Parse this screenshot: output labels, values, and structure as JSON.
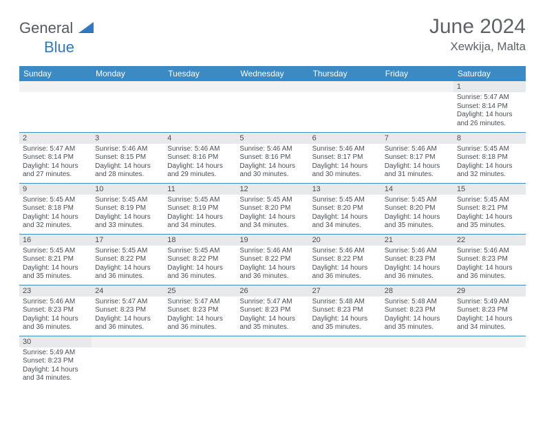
{
  "logo": {
    "generalText": "General",
    "blueText": "Blue"
  },
  "header": {
    "title": "June 2024",
    "location": "Xewkija, Malta"
  },
  "colors": {
    "headerBar": "#3b8ac4",
    "headerText": "#ffffff",
    "dayNumBg": "#e8e9ea",
    "blankBg": "#f2f2f2",
    "bodyText": "#4a4e54",
    "titleText": "#5d6168",
    "logoGray": "#555a60",
    "logoBlue": "#2f78c2",
    "pageBg": "#ffffff"
  },
  "typography": {
    "title_fontsize": 30,
    "location_fontsize": 17,
    "dayhead_fontsize": 12,
    "daynum_fontsize": 11,
    "body_fontsize": 10
  },
  "dayNames": [
    "Sunday",
    "Monday",
    "Tuesday",
    "Wednesday",
    "Thursday",
    "Friday",
    "Saturday"
  ],
  "weeks": [
    [
      null,
      null,
      null,
      null,
      null,
      null,
      {
        "n": "1",
        "sr": "Sunrise: 5:47 AM",
        "ss": "Sunset: 8:14 PM",
        "d1": "Daylight: 14 hours",
        "d2": "and 26 minutes."
      }
    ],
    [
      {
        "n": "2",
        "sr": "Sunrise: 5:47 AM",
        "ss": "Sunset: 8:14 PM",
        "d1": "Daylight: 14 hours",
        "d2": "and 27 minutes."
      },
      {
        "n": "3",
        "sr": "Sunrise: 5:46 AM",
        "ss": "Sunset: 8:15 PM",
        "d1": "Daylight: 14 hours",
        "d2": "and 28 minutes."
      },
      {
        "n": "4",
        "sr": "Sunrise: 5:46 AM",
        "ss": "Sunset: 8:16 PM",
        "d1": "Daylight: 14 hours",
        "d2": "and 29 minutes."
      },
      {
        "n": "5",
        "sr": "Sunrise: 5:46 AM",
        "ss": "Sunset: 8:16 PM",
        "d1": "Daylight: 14 hours",
        "d2": "and 30 minutes."
      },
      {
        "n": "6",
        "sr": "Sunrise: 5:46 AM",
        "ss": "Sunset: 8:17 PM",
        "d1": "Daylight: 14 hours",
        "d2": "and 30 minutes."
      },
      {
        "n": "7",
        "sr": "Sunrise: 5:46 AM",
        "ss": "Sunset: 8:17 PM",
        "d1": "Daylight: 14 hours",
        "d2": "and 31 minutes."
      },
      {
        "n": "8",
        "sr": "Sunrise: 5:45 AM",
        "ss": "Sunset: 8:18 PM",
        "d1": "Daylight: 14 hours",
        "d2": "and 32 minutes."
      }
    ],
    [
      {
        "n": "9",
        "sr": "Sunrise: 5:45 AM",
        "ss": "Sunset: 8:18 PM",
        "d1": "Daylight: 14 hours",
        "d2": "and 32 minutes."
      },
      {
        "n": "10",
        "sr": "Sunrise: 5:45 AM",
        "ss": "Sunset: 8:19 PM",
        "d1": "Daylight: 14 hours",
        "d2": "and 33 minutes."
      },
      {
        "n": "11",
        "sr": "Sunrise: 5:45 AM",
        "ss": "Sunset: 8:19 PM",
        "d1": "Daylight: 14 hours",
        "d2": "and 34 minutes."
      },
      {
        "n": "12",
        "sr": "Sunrise: 5:45 AM",
        "ss": "Sunset: 8:20 PM",
        "d1": "Daylight: 14 hours",
        "d2": "and 34 minutes."
      },
      {
        "n": "13",
        "sr": "Sunrise: 5:45 AM",
        "ss": "Sunset: 8:20 PM",
        "d1": "Daylight: 14 hours",
        "d2": "and 34 minutes."
      },
      {
        "n": "14",
        "sr": "Sunrise: 5:45 AM",
        "ss": "Sunset: 8:20 PM",
        "d1": "Daylight: 14 hours",
        "d2": "and 35 minutes."
      },
      {
        "n": "15",
        "sr": "Sunrise: 5:45 AM",
        "ss": "Sunset: 8:21 PM",
        "d1": "Daylight: 14 hours",
        "d2": "and 35 minutes."
      }
    ],
    [
      {
        "n": "16",
        "sr": "Sunrise: 5:45 AM",
        "ss": "Sunset: 8:21 PM",
        "d1": "Daylight: 14 hours",
        "d2": "and 35 minutes."
      },
      {
        "n": "17",
        "sr": "Sunrise: 5:45 AM",
        "ss": "Sunset: 8:22 PM",
        "d1": "Daylight: 14 hours",
        "d2": "and 36 minutes."
      },
      {
        "n": "18",
        "sr": "Sunrise: 5:45 AM",
        "ss": "Sunset: 8:22 PM",
        "d1": "Daylight: 14 hours",
        "d2": "and 36 minutes."
      },
      {
        "n": "19",
        "sr": "Sunrise: 5:46 AM",
        "ss": "Sunset: 8:22 PM",
        "d1": "Daylight: 14 hours",
        "d2": "and 36 minutes."
      },
      {
        "n": "20",
        "sr": "Sunrise: 5:46 AM",
        "ss": "Sunset: 8:22 PM",
        "d1": "Daylight: 14 hours",
        "d2": "and 36 minutes."
      },
      {
        "n": "21",
        "sr": "Sunrise: 5:46 AM",
        "ss": "Sunset: 8:23 PM",
        "d1": "Daylight: 14 hours",
        "d2": "and 36 minutes."
      },
      {
        "n": "22",
        "sr": "Sunrise: 5:46 AM",
        "ss": "Sunset: 8:23 PM",
        "d1": "Daylight: 14 hours",
        "d2": "and 36 minutes."
      }
    ],
    [
      {
        "n": "23",
        "sr": "Sunrise: 5:46 AM",
        "ss": "Sunset: 8:23 PM",
        "d1": "Daylight: 14 hours",
        "d2": "and 36 minutes."
      },
      {
        "n": "24",
        "sr": "Sunrise: 5:47 AM",
        "ss": "Sunset: 8:23 PM",
        "d1": "Daylight: 14 hours",
        "d2": "and 36 minutes."
      },
      {
        "n": "25",
        "sr": "Sunrise: 5:47 AM",
        "ss": "Sunset: 8:23 PM",
        "d1": "Daylight: 14 hours",
        "d2": "and 36 minutes."
      },
      {
        "n": "26",
        "sr": "Sunrise: 5:47 AM",
        "ss": "Sunset: 8:23 PM",
        "d1": "Daylight: 14 hours",
        "d2": "and 35 minutes."
      },
      {
        "n": "27",
        "sr": "Sunrise: 5:48 AM",
        "ss": "Sunset: 8:23 PM",
        "d1": "Daylight: 14 hours",
        "d2": "and 35 minutes."
      },
      {
        "n": "28",
        "sr": "Sunrise: 5:48 AM",
        "ss": "Sunset: 8:23 PM",
        "d1": "Daylight: 14 hours",
        "d2": "and 35 minutes."
      },
      {
        "n": "29",
        "sr": "Sunrise: 5:49 AM",
        "ss": "Sunset: 8:23 PM",
        "d1": "Daylight: 14 hours",
        "d2": "and 34 minutes."
      }
    ],
    [
      {
        "n": "30",
        "sr": "Sunrise: 5:49 AM",
        "ss": "Sunset: 8:23 PM",
        "d1": "Daylight: 14 hours",
        "d2": "and 34 minutes."
      },
      null,
      null,
      null,
      null,
      null,
      null
    ]
  ]
}
